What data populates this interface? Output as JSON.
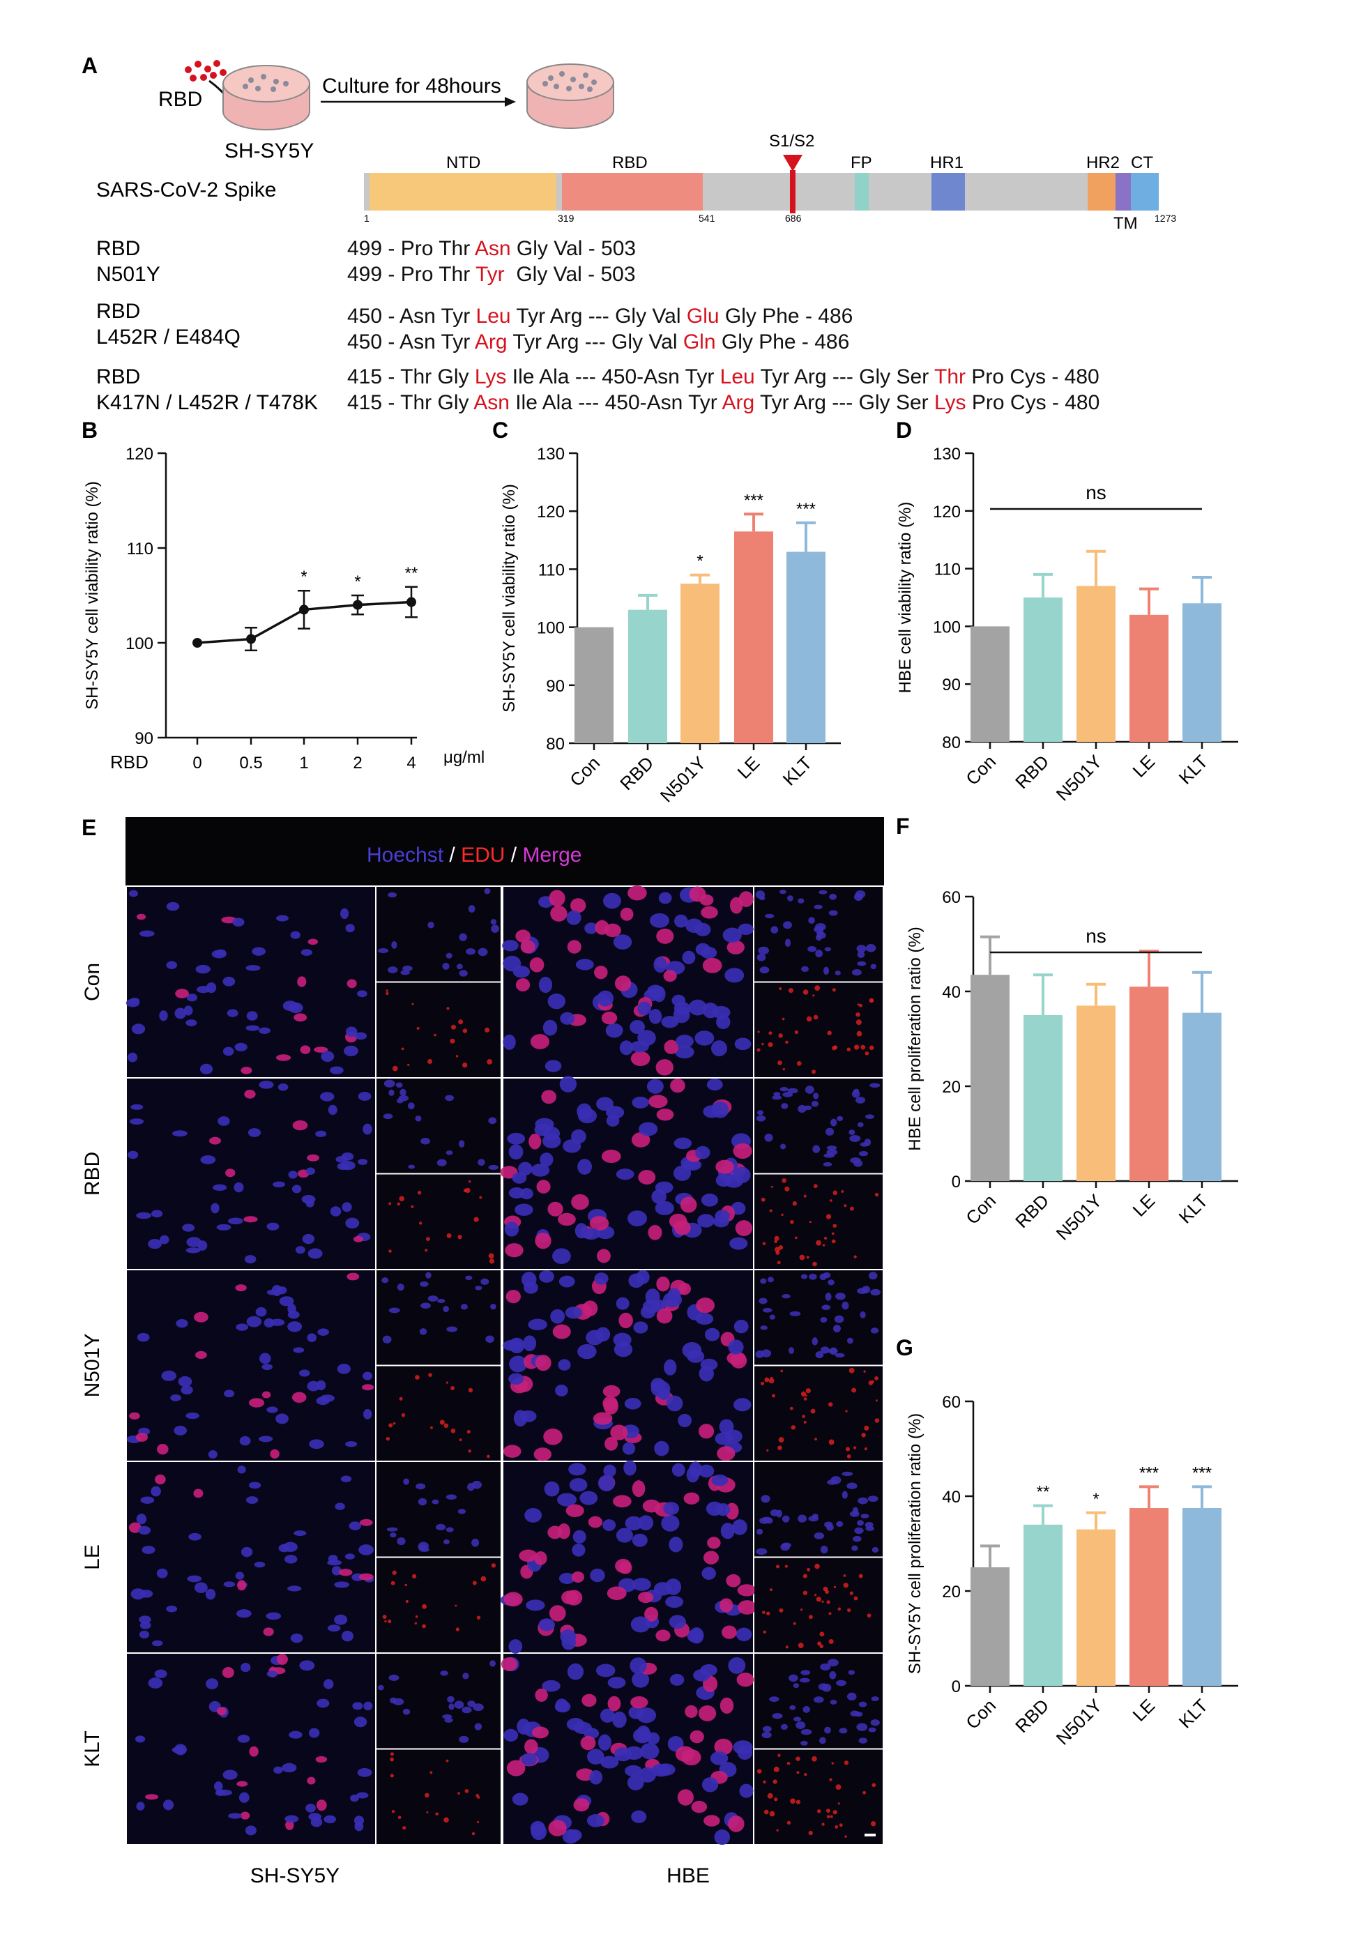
{
  "colors": {
    "con": "#a3a3a3",
    "rbd": "#97d4cc",
    "n501y": "#f7bd79",
    "le": "#ee8272",
    "klt": "#8fb9da",
    "red": "#d6121f",
    "black": "#111111"
  },
  "panel_a": {
    "letter": "A",
    "rbd_label": "RBD",
    "cell_label": "SH-SY5Y",
    "culture_label": "Culture for 48hours",
    "spike_label": "SARS-CoV-2 Spike",
    "domains": {
      "ntd": "NTD",
      "rbd": "RBD",
      "s1s2": "S1/S2",
      "fp": "FP",
      "hr1": "HR1",
      "hr2": "HR2",
      "ct": "CT",
      "tm": "TM"
    },
    "positions": {
      "p1": "1",
      "p319": "319",
      "p541": "541",
      "p686": "686",
      "p1273": "1273"
    },
    "variants": [
      {
        "wt_label": "RBD",
        "mut_label": "N501Y",
        "wt_seq": [
          {
            "t": "499 - Pro Thr ",
            "h": false
          },
          {
            "t": "Asn",
            "h": true
          },
          {
            "t": " Gly Val - 503",
            "h": false
          }
        ],
        "mut_seq": [
          {
            "t": "499 - Pro Thr ",
            "h": false
          },
          {
            "t": "Tyr",
            "h": true
          },
          {
            "t": "  Gly Val - 503",
            "h": false
          }
        ]
      },
      {
        "wt_label": "RBD",
        "mut_label": "L452R / E484Q",
        "wt_seq": [
          {
            "t": "450 - Asn Tyr ",
            "h": false
          },
          {
            "t": "Leu",
            "h": true
          },
          {
            "t": " Tyr Arg --- Gly Val ",
            "h": false
          },
          {
            "t": "Glu",
            "h": true
          },
          {
            "t": " Gly Phe - 486",
            "h": false
          }
        ],
        "mut_seq": [
          {
            "t": "450 - Asn Tyr ",
            "h": false
          },
          {
            "t": "Arg",
            "h": true
          },
          {
            "t": " Tyr Arg --- Gly Val ",
            "h": false
          },
          {
            "t": "Gln",
            "h": true
          },
          {
            "t": " Gly Phe - 486",
            "h": false
          }
        ]
      },
      {
        "wt_label": "RBD",
        "mut_label": "K417N / L452R / T478K",
        "wt_seq": [
          {
            "t": "415 - Thr Gly ",
            "h": false
          },
          {
            "t": "Lys",
            "h": true
          },
          {
            "t": " Ile Ala --- 450-Asn Tyr ",
            "h": false
          },
          {
            "t": "Leu",
            "h": true
          },
          {
            "t": " Tyr Arg --- Gly Ser ",
            "h": false
          },
          {
            "t": "Thr",
            "h": true
          },
          {
            "t": " Pro Cys - 480",
            "h": false
          }
        ],
        "mut_seq": [
          {
            "t": "415 - Thr Gly ",
            "h": false
          },
          {
            "t": "Asn",
            "h": true
          },
          {
            "t": " Ile Ala --- 450-Asn Tyr ",
            "h": false
          },
          {
            "t": "Arg",
            "h": true
          },
          {
            "t": " Tyr Arg --- Gly Ser ",
            "h": false
          },
          {
            "t": "Lys",
            "h": true
          },
          {
            "t": " Pro Cys - 480",
            "h": false
          }
        ]
      }
    ]
  },
  "panel_e": {
    "letter": "E",
    "legend": {
      "hoechst": "Hoechst",
      "sep": " / ",
      "edu": "EDU",
      "merge": "Merge"
    },
    "legend_colors": {
      "hoechst": "#4a3fd6",
      "edu": "#ff2a2a",
      "merge": "#d63ad6",
      "sep": "#ffffff"
    },
    "rows": [
      "Con",
      "RBD",
      "N501Y",
      "LE",
      "KLT"
    ],
    "columns": [
      "SH-SY5Y",
      "HBE"
    ]
  },
  "chart_data": [
    {
      "panel": "B",
      "type": "line",
      "ylabel": "SH-SY5Y cell viability ratio (%)",
      "x_prefix": "RBD",
      "x_unit": "μg/ml",
      "categories": [
        "0",
        "0.5",
        "1",
        "2",
        "4"
      ],
      "values": [
        100,
        100.4,
        103.5,
        104,
        104.3
      ],
      "errors": [
        0,
        1.2,
        2.0,
        1.0,
        1.6
      ],
      "significance": [
        "",
        "",
        "*",
        "*",
        "**"
      ],
      "ylim": [
        90,
        120
      ],
      "yticks": [
        90,
        100,
        110,
        120
      ]
    },
    {
      "panel": "C",
      "type": "bar",
      "ylabel": "SH-SY5Y cell viability ratio (%)",
      "categories": [
        "Con",
        "RBD",
        "N501Y",
        "LE",
        "KLT"
      ],
      "values": [
        100,
        103,
        107.5,
        116.5,
        113
      ],
      "errors": [
        0,
        2.5,
        1.5,
        3.0,
        5.0
      ],
      "significance": [
        "",
        "",
        "*",
        "***",
        "***"
      ],
      "ylim": [
        80,
        130
      ],
      "yticks": [
        80,
        90,
        100,
        110,
        120,
        130
      ]
    },
    {
      "panel": "D",
      "type": "bar",
      "ylabel": "HBE cell viability ratio (%)",
      "categories": [
        "Con",
        "RBD",
        "N501Y",
        "LE",
        "KLT"
      ],
      "values": [
        100,
        105,
        107,
        102,
        104
      ],
      "errors": [
        0,
        4,
        6,
        4.5,
        4.5
      ],
      "group_annotation": "ns",
      "ylim": [
        80,
        130
      ],
      "yticks": [
        80,
        90,
        100,
        110,
        120,
        130
      ]
    },
    {
      "panel": "F",
      "type": "bar",
      "ylabel": "HBE cell proliferation ratio (%)",
      "categories": [
        "Con",
        "RBD",
        "N501Y",
        "LE",
        "KLT"
      ],
      "values": [
        43.5,
        35,
        37,
        41,
        35.5
      ],
      "errors": [
        8,
        8.5,
        4.5,
        7.5,
        8.5
      ],
      "group_annotation": "ns",
      "ylim": [
        0,
        60
      ],
      "yticks": [
        0,
        20,
        40,
        60
      ]
    },
    {
      "panel": "G",
      "type": "bar",
      "ylabel": "SH-SY5Y cell proliferation  ratio (%)",
      "categories": [
        "Con",
        "RBD",
        "N501Y",
        "LE",
        "KLT"
      ],
      "values": [
        25,
        34,
        33,
        37.5,
        37.5
      ],
      "errors": [
        4.5,
        4,
        3.5,
        4.5,
        4.5
      ],
      "significance": [
        "",
        "**",
        "*",
        "***",
        "***"
      ],
      "ylim": [
        0,
        60
      ],
      "yticks": [
        0,
        20,
        40,
        60
      ]
    }
  ]
}
